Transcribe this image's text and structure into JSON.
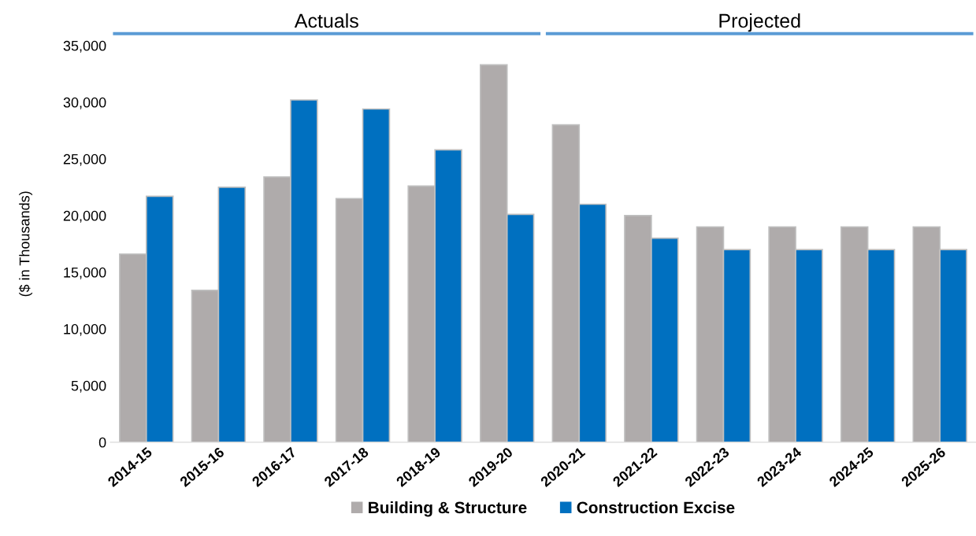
{
  "chart_data": {
    "type": "bar",
    "categories": [
      "2014-15",
      "2015-16",
      "2016-17",
      "2017-18",
      "2018-19",
      "2019-20",
      "2020-21",
      "2021-22",
      "2022-23",
      "2023-24",
      "2024-25",
      "2025-26"
    ],
    "series": [
      {
        "name": "Building & Structure",
        "color": "#afabab",
        "values": [
          16600,
          13400,
          23400,
          21500,
          22600,
          33300,
          28000,
          20000,
          19000,
          19000,
          19000,
          19000
        ]
      },
      {
        "name": "Construction Excise",
        "color": "#0070c0",
        "values": [
          21700,
          22500,
          30200,
          29400,
          25800,
          20100,
          21000,
          18000,
          17000,
          17000,
          17000,
          17000
        ]
      }
    ],
    "ylabel": "($ in Thousands)",
    "ylim": [
      0,
      35000
    ],
    "yticks": [
      {
        "value": 0,
        "label": "0"
      },
      {
        "value": 5000,
        "label": "5,000"
      },
      {
        "value": 10000,
        "label": "10,000"
      },
      {
        "value": 15000,
        "label": "15,000"
      },
      {
        "value": 20000,
        "label": "20,000"
      },
      {
        "value": 25000,
        "label": "25,000"
      },
      {
        "value": 30000,
        "label": "30,000"
      },
      {
        "value": 35000,
        "label": "35,000"
      }
    ],
    "annotations": [
      "Actuals",
      "Projected"
    ],
    "grid": false,
    "legend": "bottom"
  }
}
